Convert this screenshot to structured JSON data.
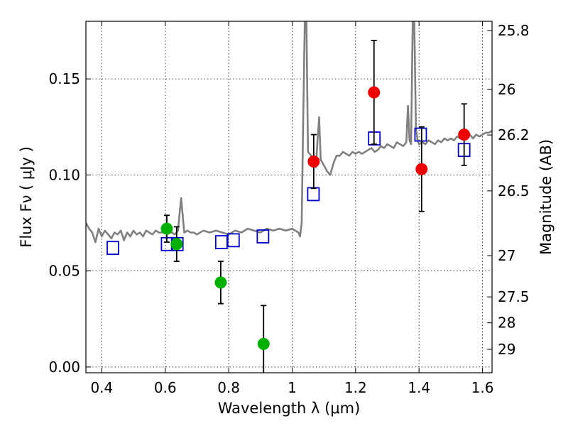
{
  "chart_data": {
    "type": "scatter",
    "title": "",
    "xlabel": "Wavelength  λ (μm)",
    "ylabel": "Flux  Fν  ( μJy )",
    "ylabel_right": "Magnitude (AB)",
    "xlim": [
      0.35,
      1.63
    ],
    "ylim": [
      -0.003,
      0.18
    ],
    "grid": true,
    "x_ticks": [
      0.4,
      0.6,
      0.8,
      1.0,
      1.2,
      1.4,
      1.6
    ],
    "x_tick_labels": [
      "0.4",
      "0.6",
      "0.8",
      "1",
      "1.2",
      "1.4",
      "1.6"
    ],
    "y_ticks": [
      0.0,
      0.05,
      0.1,
      0.15
    ],
    "y_tick_labels": [
      "0.00",
      "0.05",
      "0.10",
      "0.15"
    ],
    "right_ticks": [
      {
        "label": "25.8",
        "flux": 0.1752
      },
      {
        "label": "26",
        "flux": 0.1445
      },
      {
        "label": "26.2",
        "flux": 0.1208
      },
      {
        "label": "26.5",
        "flux": 0.0917
      },
      {
        "label": "27",
        "flux": 0.058
      },
      {
        "label": "27.5",
        "flux": 0.0365
      },
      {
        "label": "28",
        "flux": 0.023
      },
      {
        "label": "29",
        "flux": 0.0092
      }
    ],
    "series": [
      {
        "marker": "line",
        "color": "#808080",
        "x": [
          0.35,
          0.36,
          0.37,
          0.38,
          0.39,
          0.4,
          0.41,
          0.42,
          0.43,
          0.44,
          0.45,
          0.46,
          0.47,
          0.48,
          0.49,
          0.5,
          0.51,
          0.52,
          0.53,
          0.54,
          0.55,
          0.56,
          0.57,
          0.58,
          0.59,
          0.6,
          0.61,
          0.62,
          0.63,
          0.64,
          0.65,
          0.66,
          0.67,
          0.68,
          0.69,
          0.7,
          0.72,
          0.74,
          0.76,
          0.78,
          0.8,
          0.82,
          0.84,
          0.86,
          0.88,
          0.9,
          0.92,
          0.94,
          0.96,
          0.98,
          1.0,
          1.01,
          1.02,
          1.025,
          1.03,
          1.035,
          1.04,
          1.045,
          1.05,
          1.06,
          1.07,
          1.075,
          1.08,
          1.085,
          1.09,
          1.1,
          1.11,
          1.12,
          1.13,
          1.14,
          1.15,
          1.16,
          1.17,
          1.18,
          1.19,
          1.2,
          1.21,
          1.22,
          1.23,
          1.24,
          1.25,
          1.26,
          1.27,
          1.28,
          1.29,
          1.3,
          1.31,
          1.32,
          1.33,
          1.34,
          1.35,
          1.36,
          1.365,
          1.37,
          1.375,
          1.38,
          1.385,
          1.39,
          1.395,
          1.4,
          1.41,
          1.42,
          1.43,
          1.44,
          1.45,
          1.46,
          1.47,
          1.48,
          1.49,
          1.5,
          1.51,
          1.52,
          1.53,
          1.54,
          1.55,
          1.56,
          1.57,
          1.58,
          1.59,
          1.6,
          1.61,
          1.62,
          1.63
        ],
        "y": [
          0.075,
          0.072,
          0.07,
          0.065,
          0.072,
          0.068,
          0.071,
          0.069,
          0.067,
          0.07,
          0.069,
          0.071,
          0.066,
          0.07,
          0.068,
          0.071,
          0.069,
          0.07,
          0.068,
          0.071,
          0.07,
          0.069,
          0.071,
          0.07,
          0.07,
          0.071,
          0.072,
          0.07,
          0.069,
          0.071,
          0.088,
          0.07,
          0.071,
          0.07,
          0.07,
          0.069,
          0.071,
          0.07,
          0.071,
          0.07,
          0.069,
          0.071,
          0.07,
          0.072,
          0.071,
          0.07,
          0.072,
          0.071,
          0.072,
          0.071,
          0.072,
          0.071,
          0.07,
          0.068,
          0.075,
          0.13,
          0.18,
          0.18,
          0.112,
          0.11,
          0.105,
          0.104,
          0.118,
          0.13,
          0.108,
          0.105,
          0.102,
          0.1,
          0.106,
          0.11,
          0.11,
          0.112,
          0.111,
          0.11,
          0.112,
          0.111,
          0.112,
          0.111,
          0.112,
          0.113,
          0.114,
          0.112,
          0.113,
          0.115,
          0.114,
          0.116,
          0.115,
          0.114,
          0.117,
          0.116,
          0.115,
          0.117,
          0.136,
          0.118,
          0.116,
          0.18,
          0.18,
          0.125,
          0.118,
          0.116,
          0.117,
          0.116,
          0.118,
          0.117,
          0.116,
          0.118,
          0.117,
          0.119,
          0.118,
          0.119,
          0.118,
          0.12,
          0.119,
          0.12,
          0.119,
          0.121,
          0.119,
          0.121,
          0.12,
          0.121,
          0.122,
          0.122,
          0.123
        ]
      },
      {
        "marker": "circle",
        "color": "#00b000",
        "points": [
          {
            "x": 0.605,
            "y": 0.072,
            "err": 0.007
          },
          {
            "x": 0.636,
            "y": 0.064,
            "err": 0.009
          },
          {
            "x": 0.775,
            "y": 0.044,
            "err": 0.011
          },
          {
            "x": 0.91,
            "y": 0.012,
            "err": 0.02
          }
        ]
      },
      {
        "marker": "circle",
        "color": "#ee0000",
        "points": [
          {
            "x": 1.068,
            "y": 0.107,
            "err": 0.014
          },
          {
            "x": 1.258,
            "y": 0.143,
            "err": 0.027
          },
          {
            "x": 1.408,
            "y": 0.103,
            "err": 0.022
          },
          {
            "x": 1.542,
            "y": 0.121,
            "err": 0.016
          }
        ]
      },
      {
        "marker": "square",
        "color": "#0000cc",
        "points": [
          {
            "x": 0.435,
            "y": 0.062
          },
          {
            "x": 0.606,
            "y": 0.064
          },
          {
            "x": 0.638,
            "y": 0.064
          },
          {
            "x": 0.777,
            "y": 0.065
          },
          {
            "x": 0.815,
            "y": 0.066
          },
          {
            "x": 0.908,
            "y": 0.068
          },
          {
            "x": 1.067,
            "y": 0.09
          },
          {
            "x": 1.259,
            "y": 0.119
          },
          {
            "x": 1.405,
            "y": 0.121
          },
          {
            "x": 1.542,
            "y": 0.113
          }
        ]
      }
    ]
  }
}
